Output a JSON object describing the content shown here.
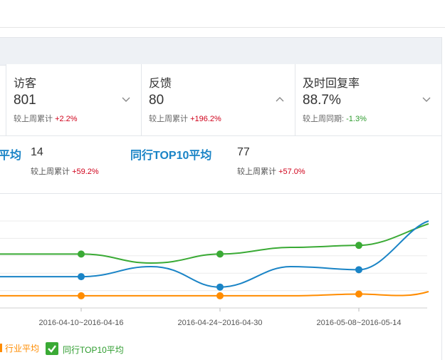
{
  "metrics": {
    "visitors": {
      "label": "访客",
      "value": "801",
      "compare_label": "较上周累计",
      "compare_value": "+2.2%"
    },
    "feedback": {
      "label": "反馈",
      "value": "80",
      "compare_label": "较上周累计",
      "compare_value": "+196.2%"
    },
    "reply_rate": {
      "label": "及时回复率",
      "value": "88.7%",
      "compare_label": "较上周同期:",
      "compare_value": "-1.3%"
    }
  },
  "comparison": {
    "industry_partial_title": "平均",
    "industry_value": "14",
    "industry_compare_label": "较上周累计",
    "industry_compare_value": "+59.2%",
    "top10_title": "同行TOP10平均",
    "top10_value": "77",
    "top10_compare_label": "较上周累计",
    "top10_compare_value": "+57.0%"
  },
  "legend": {
    "industry": "行业平均",
    "top10": "同行TOP10平均"
  },
  "colors": {
    "blue": "#1a84c6",
    "green": "#3aaa35",
    "orange": "#ff8c00",
    "red": "#d0021b"
  },
  "chart_data": {
    "type": "line",
    "x": [
      "2016-04-10~2016-04-16",
      "2016-04-24~2016-04-30",
      "2016-05-08~2016-05-14"
    ],
    "xlabel": "",
    "ylabel": "",
    "grid": true,
    "legend_position": "bottom-left",
    "series": [
      {
        "name": "同行TOP10平均",
        "color": "#3aaa35",
        "values": [
          0.62,
          0.62,
          0.72
        ]
      },
      {
        "name": "行业平均",
        "color": "#ff8c00",
        "values": [
          0.14,
          0.14,
          0.16
        ]
      },
      {
        "name": "",
        "color": "#1a84c6",
        "values": [
          0.36,
          0.24,
          0.44
        ]
      }
    ]
  }
}
